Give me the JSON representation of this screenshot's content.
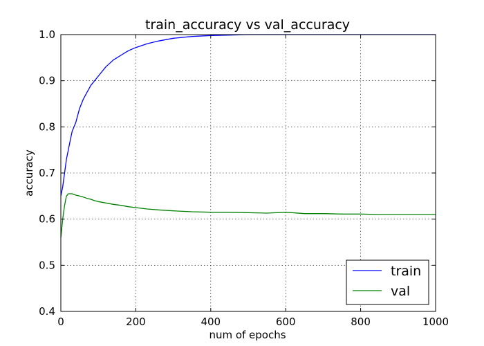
{
  "chart_data": {
    "type": "line",
    "title": "train_accuracy vs val_accuracy",
    "xlabel": "num of epochs",
    "ylabel": "accuracy",
    "xlim": [
      0,
      1000
    ],
    "ylim": [
      0.4,
      1.0
    ],
    "xticks": [
      0,
      200,
      400,
      600,
      800,
      1000
    ],
    "yticks": [
      0.4,
      0.5,
      0.6,
      0.7,
      0.8,
      0.9,
      1.0
    ],
    "xtick_labels": [
      "0",
      "200",
      "400",
      "600",
      "800",
      "1000"
    ],
    "ytick_labels": [
      "0.4",
      "0.5",
      "0.6",
      "0.7",
      "0.8",
      "0.9",
      "1.0"
    ],
    "grid": true,
    "legend_position": "lower-right",
    "series": [
      {
        "name": "train",
        "color": "#0000ff",
        "x": [
          0,
          5,
          10,
          15,
          20,
          25,
          30,
          40,
          50,
          60,
          70,
          80,
          90,
          100,
          120,
          140,
          160,
          180,
          200,
          230,
          260,
          300,
          350,
          400,
          450,
          500,
          550,
          600,
          650,
          700,
          750,
          800,
          850,
          900,
          950,
          1000
        ],
        "y": [
          0.65,
          0.67,
          0.7,
          0.73,
          0.75,
          0.77,
          0.79,
          0.81,
          0.84,
          0.86,
          0.875,
          0.89,
          0.9,
          0.91,
          0.93,
          0.945,
          0.955,
          0.965,
          0.972,
          0.98,
          0.986,
          0.992,
          0.996,
          0.998,
          0.999,
          1.0,
          1.0,
          1.0,
          1.0,
          1.0,
          1.0,
          1.0,
          1.0,
          1.0,
          1.0,
          1.0
        ]
      },
      {
        "name": "val",
        "color": "#008000",
        "x": [
          0,
          5,
          10,
          15,
          20,
          25,
          30,
          40,
          50,
          60,
          70,
          80,
          90,
          100,
          120,
          140,
          160,
          180,
          200,
          230,
          260,
          300,
          350,
          400,
          450,
          500,
          550,
          600,
          650,
          700,
          750,
          800,
          850,
          900,
          950,
          1000
        ],
        "y": [
          0.56,
          0.6,
          0.63,
          0.65,
          0.655,
          0.655,
          0.655,
          0.652,
          0.65,
          0.648,
          0.645,
          0.643,
          0.64,
          0.638,
          0.635,
          0.632,
          0.63,
          0.627,
          0.625,
          0.622,
          0.62,
          0.618,
          0.616,
          0.615,
          0.615,
          0.614,
          0.613,
          0.615,
          0.612,
          0.612,
          0.611,
          0.611,
          0.61,
          0.61,
          0.61,
          0.61
        ]
      }
    ]
  }
}
